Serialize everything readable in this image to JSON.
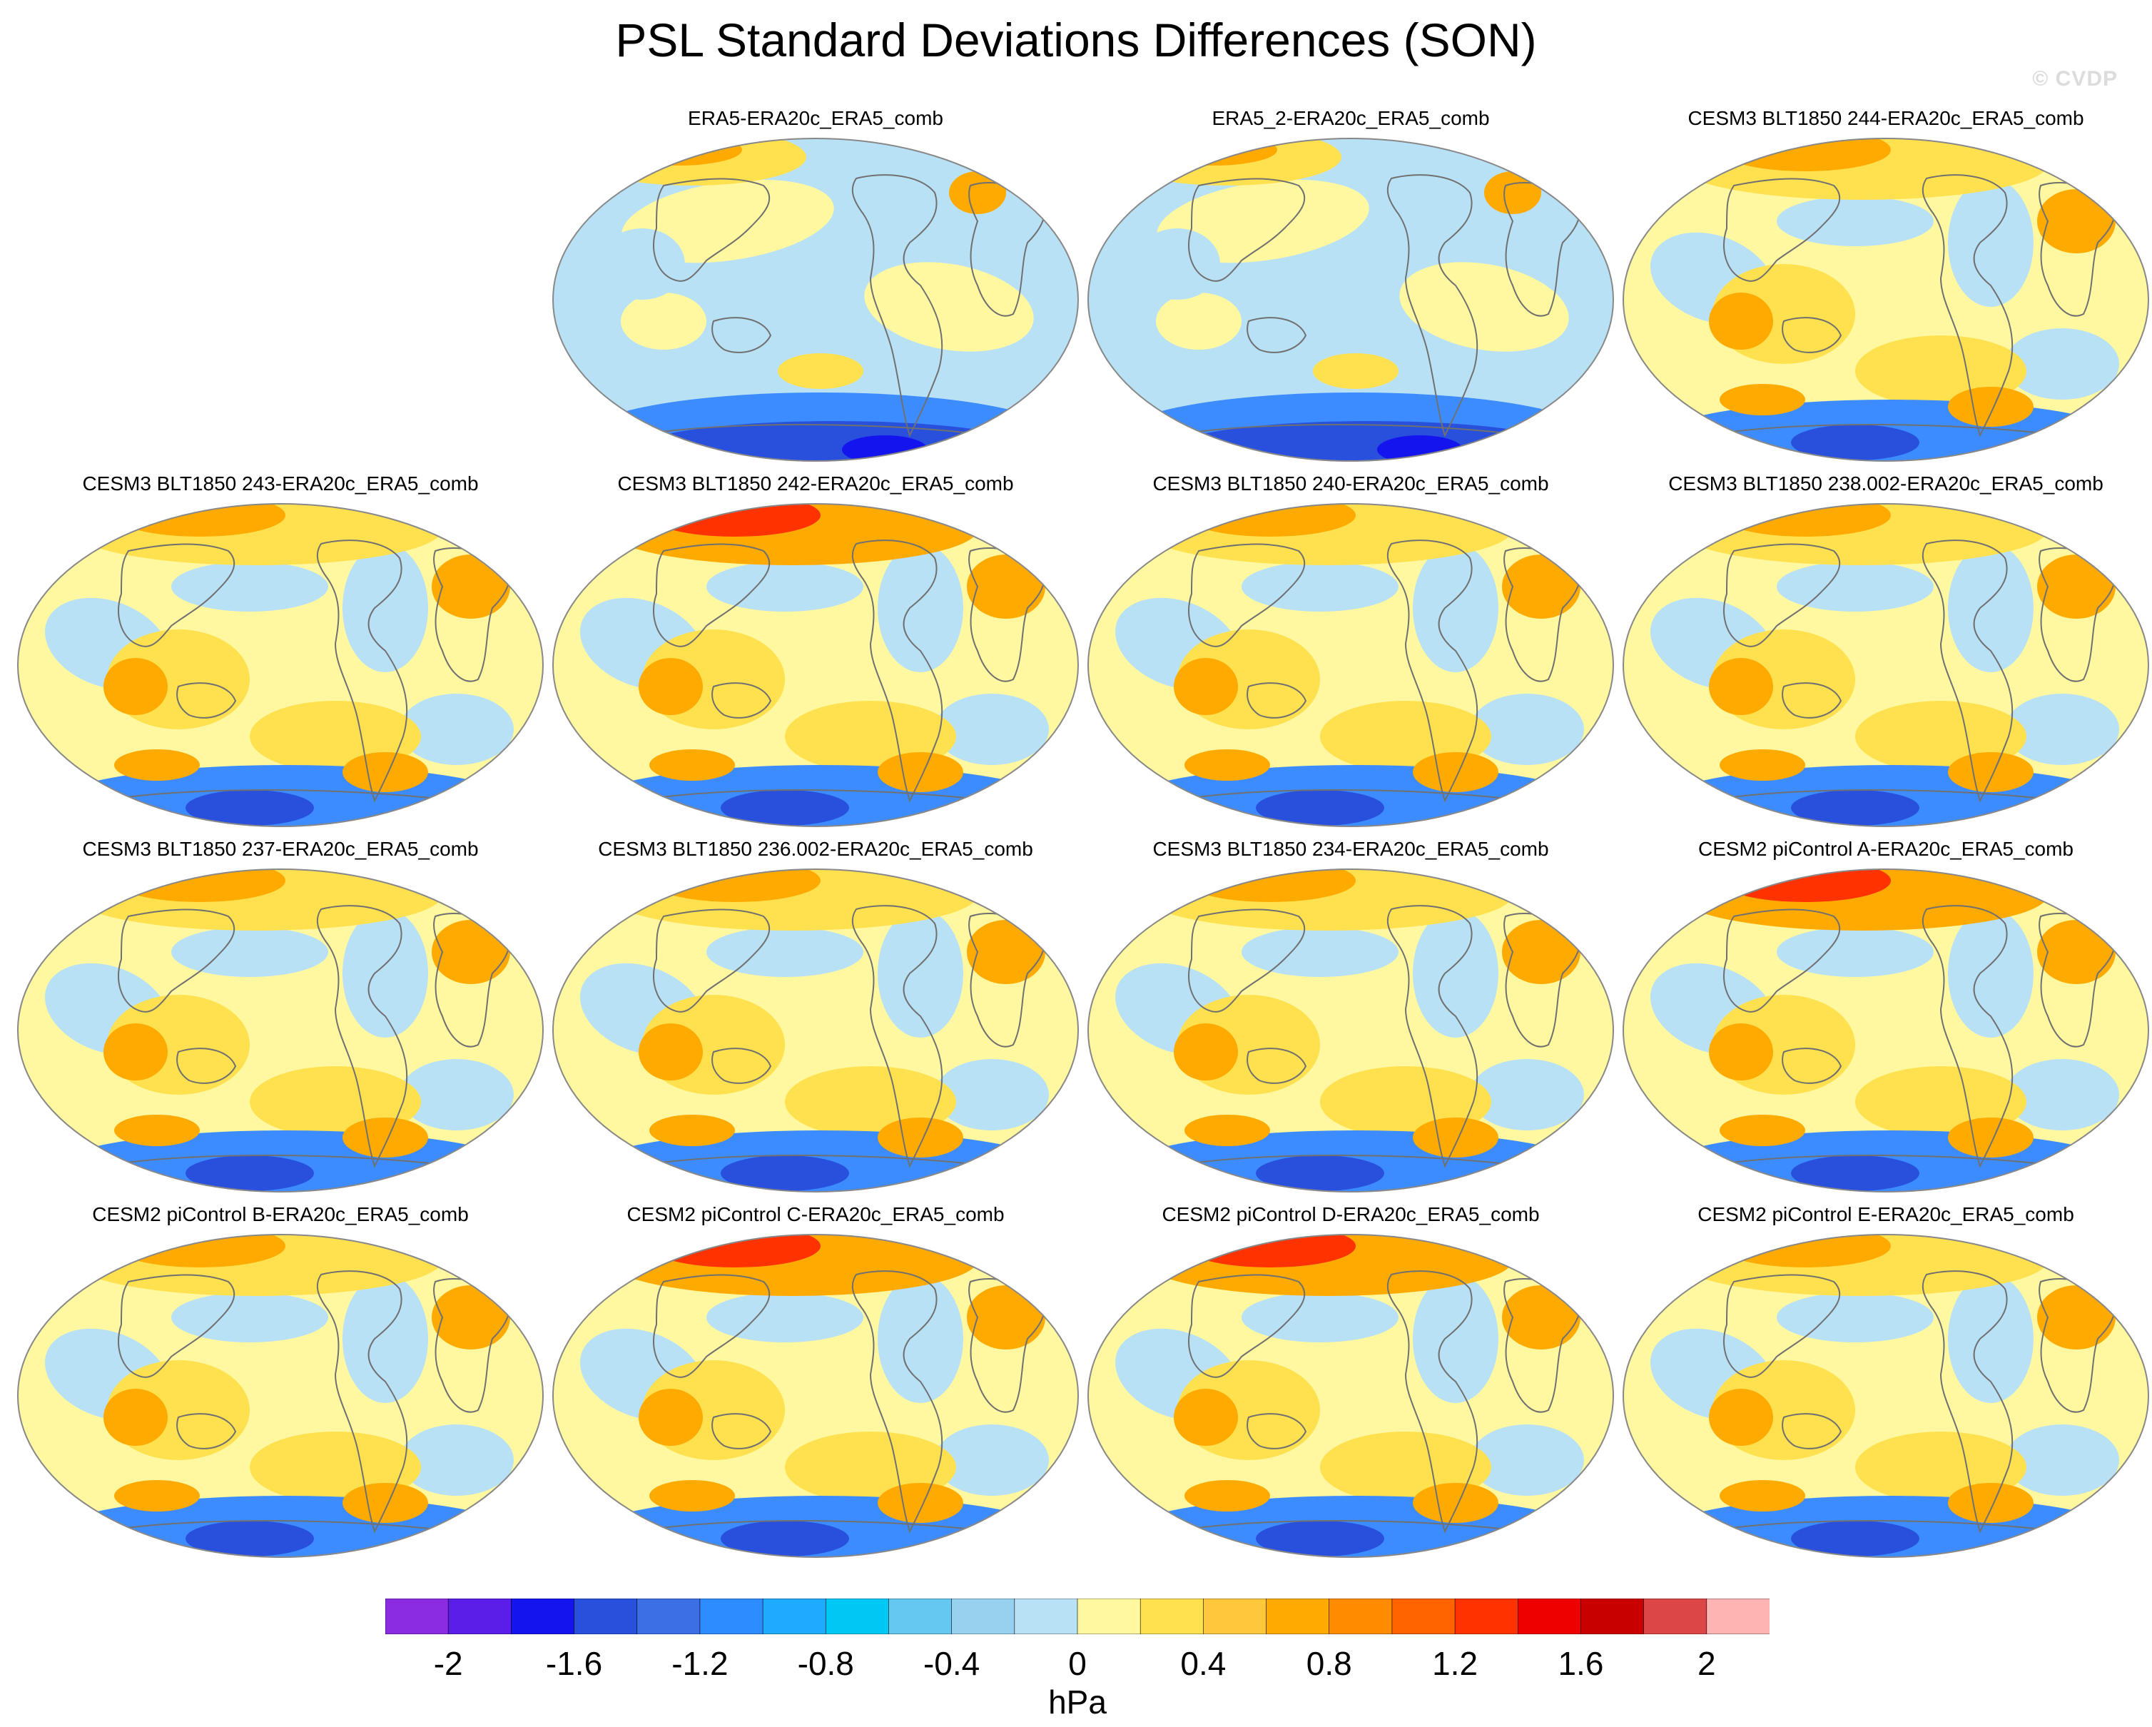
{
  "figure": {
    "title": "PSL Standard Deviations Differences (SON)",
    "watermark": "© CVDP"
  },
  "panels": [
    {
      "title": "ERA5-ERA20c_ERA5_comb",
      "pattern": "obs-a"
    },
    {
      "title": "ERA5_2-ERA20c_ERA5_comb",
      "pattern": "obs-b"
    },
    {
      "title": "CESM3 BLT1850 244-ERA20c_ERA5_comb",
      "pattern": "model"
    },
    {
      "title": "CESM3 BLT1850 243-ERA20c_ERA5_comb",
      "pattern": "model"
    },
    {
      "title": "CESM3 BLT1850 242-ERA20c_ERA5_comb",
      "pattern": "model-warm"
    },
    {
      "title": "CESM3 BLT1850 240-ERA20c_ERA5_comb",
      "pattern": "model"
    },
    {
      "title": "CESM3 BLT1850 238.002-ERA20c_ERA5_comb",
      "pattern": "model"
    },
    {
      "title": "CESM3 BLT1850 237-ERA20c_ERA5_comb",
      "pattern": "model"
    },
    {
      "title": "CESM3 BLT1850 236.002-ERA20c_ERA5_comb",
      "pattern": "model"
    },
    {
      "title": "CESM3 BLT1850 234-ERA20c_ERA5_comb",
      "pattern": "model"
    },
    {
      "title": "CESM2 piControl A-ERA20c_ERA5_comb",
      "pattern": "model-warm"
    },
    {
      "title": "CESM2 piControl B-ERA20c_ERA5_comb",
      "pattern": "model"
    },
    {
      "title": "CESM2 piControl C-ERA20c_ERA5_comb",
      "pattern": "model-warm"
    },
    {
      "title": "CESM2 piControl D-ERA20c_ERA5_comb",
      "pattern": "model-warm"
    },
    {
      "title": "CESM2 piControl E-ERA20c_ERA5_comb",
      "pattern": "model"
    }
  ],
  "colorbar": {
    "unit": "hPa",
    "tick_labels": [
      "-2",
      "-1.6",
      "-1.2",
      "-0.8",
      "-0.4",
      "0",
      "0.4",
      "0.8",
      "1.2",
      "1.6",
      "2"
    ],
    "colors": [
      "#8b2be2",
      "#5a1ee8",
      "#1414ee",
      "#2850dc",
      "#3c6ee6",
      "#2d8cff",
      "#1eaaff",
      "#00c8f5",
      "#64c8f0",
      "#96d2f0",
      "#b9e1f5",
      "#fff8a0",
      "#ffe150",
      "#ffc83c",
      "#ffaa00",
      "#ff8c00",
      "#ff6400",
      "#ff3200",
      "#ee0000",
      "#c80000",
      "#dc4646",
      "#ffb4b4"
    ]
  },
  "palette": {
    "deep_blue": "#1414ee",
    "mid_blue": "#3c8cff",
    "light_blue": "#b9e1f5",
    "pale_yellow": "#fff8a0",
    "yellow": "#ffe150",
    "orange": "#ffaa00",
    "red": "#ff3200",
    "coast": "#707070"
  }
}
